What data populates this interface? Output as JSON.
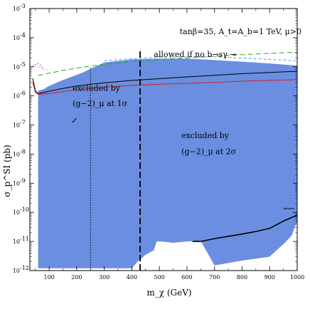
{
  "chart_data": {
    "type": "area",
    "title": "tanβ=35, A_t=A_b=1 TeV, μ>0",
    "xlabel": "m_χ (GeV)",
    "ylabel": "σ_p^SI (pb)",
    "x_scale": "linear",
    "y_scale": "log",
    "xlim": [
      30,
      1000
    ],
    "ylim": [
      1e-12,
      0.001
    ],
    "grid": false,
    "x_ticks": [
      {
        "value": 100,
        "label": "100"
      },
      {
        "value": 200,
        "label": "200"
      },
      {
        "value": 300,
        "label": "300"
      },
      {
        "value": 400,
        "label": "400"
      },
      {
        "value": 500,
        "label": "500"
      },
      {
        "value": 600,
        "label": "600"
      },
      {
        "value": 700,
        "label": "700"
      },
      {
        "value": 800,
        "label": "800"
      },
      {
        "value": 900,
        "label": "900"
      },
      {
        "value": 1000,
        "label": "1000"
      }
    ],
    "y_ticks": [
      {
        "exp": -12,
        "label": "10",
        "sup": "-12"
      },
      {
        "exp": -11,
        "label": "10",
        "sup": "-11"
      },
      {
        "exp": -10,
        "label": "10",
        "sup": "-10"
      },
      {
        "exp": -9,
        "label": "10",
        "sup": "-9"
      },
      {
        "exp": -8,
        "label": "10",
        "sup": "-8"
      },
      {
        "exp": -7,
        "label": "10",
        "sup": "-7"
      },
      {
        "exp": -6,
        "label": "10",
        "sup": "-6"
      },
      {
        "exp": -5,
        "label": "10",
        "sup": "-5"
      },
      {
        "exp": -4,
        "label": "10",
        "sup": "-4"
      },
      {
        "exp": -3,
        "label": "10",
        "sup": "-3"
      }
    ],
    "regions": [
      {
        "fill": "#6b8ee0",
        "upper": [
          [
            60,
            1.5e-06
          ],
          [
            80,
            1.7e-06
          ],
          [
            100,
            2.2e-06
          ],
          [
            140,
            3.2e-06
          ],
          [
            180,
            4.5e-06
          ],
          [
            220,
            6.2e-06
          ],
          [
            260,
            9.5e-06
          ],
          [
            300,
            1.4e-05
          ],
          [
            400,
            1.8e-05
          ],
          [
            500,
            1.9e-05
          ],
          [
            600,
            1.9e-05
          ],
          [
            700,
            1.7e-05
          ],
          [
            800,
            1.5e-05
          ],
          [
            900,
            1.3e-05
          ],
          [
            1000,
            1.1e-05
          ]
        ],
        "lower": [
          [
            1000,
            5e-11
          ],
          [
            980,
            1.6e-11
          ],
          [
            960,
            1e-11
          ],
          [
            900,
            3e-12
          ],
          [
            800,
            2.2e-12
          ],
          [
            700,
            1.5e-12
          ],
          [
            650,
            1.05e-11
          ],
          [
            600,
            1e-11
          ],
          [
            550,
            9e-12
          ],
          [
            510,
            1e-11
          ],
          [
            490,
            1e-11
          ],
          [
            480,
            5e-12
          ],
          [
            450,
            3.5e-12
          ],
          [
            420,
            2e-12
          ],
          [
            400,
            1.2e-12
          ],
          [
            60,
            1.2e-12
          ]
        ]
      }
    ],
    "series": [
      {
        "color": "#000000",
        "dash": "",
        "points": [
          [
            40,
            4e-06
          ],
          [
            45,
            2.5e-06
          ],
          [
            50,
            1.5e-06
          ],
          [
            60,
            1.2e-06
          ],
          [
            80,
            1.3e-06
          ],
          [
            100,
            1.45e-06
          ],
          [
            150,
            1.8e-06
          ],
          [
            200,
            2.2e-06
          ],
          [
            250,
            2.5e-06
          ],
          [
            300,
            2.8e-06
          ],
          [
            400,
            3.4e-06
          ],
          [
            500,
            3.9e-06
          ],
          [
            600,
            4.5e-06
          ],
          [
            700,
            5.1e-06
          ],
          [
            800,
            5.8e-06
          ],
          [
            900,
            6.4e-06
          ],
          [
            1000,
            7e-06
          ]
        ]
      },
      {
        "color": "#cc2222",
        "dash": "",
        "points": [
          [
            40,
            3e-06
          ],
          [
            50,
            1.3e-06
          ],
          [
            60,
            1.15e-06
          ],
          [
            80,
            1.15e-06
          ],
          [
            100,
            1.2e-06
          ],
          [
            150,
            1.4e-06
          ],
          [
            200,
            1.65e-06
          ],
          [
            300,
            2e-06
          ],
          [
            400,
            2.3e-06
          ],
          [
            500,
            2.5e-06
          ],
          [
            600,
            2.7e-06
          ],
          [
            700,
            2.9e-06
          ],
          [
            800,
            3.2e-06
          ],
          [
            900,
            3.4e-06
          ],
          [
            1000,
            3.6e-06
          ]
        ]
      },
      {
        "color": "#22aa22",
        "dash": "7 4",
        "points": [
          [
            60,
            5e-06
          ],
          [
            100,
            6e-06
          ],
          [
            150,
            7.5e-06
          ],
          [
            200,
            9e-06
          ],
          [
            250,
            1.05e-05
          ],
          [
            300,
            1.2e-05
          ],
          [
            400,
            1.5e-05
          ],
          [
            500,
            1.8e-05
          ],
          [
            600,
            2e-05
          ],
          [
            700,
            2.3e-05
          ],
          [
            800,
            2.6e-05
          ],
          [
            900,
            2.9e-05
          ],
          [
            1000,
            3.2e-05
          ]
        ]
      },
      {
        "color": "#5599ee",
        "dash": "4 3",
        "points": [
          [
            300,
            1.6e-05
          ],
          [
            400,
            1.9e-05
          ],
          [
            500,
            2.1e-05
          ],
          [
            600,
            2.2e-05
          ],
          [
            700,
            2.2e-05
          ],
          [
            800,
            2e-05
          ],
          [
            900,
            1.8e-05
          ],
          [
            1000,
            1.6e-05
          ]
        ]
      },
      {
        "color": "#bb44bb",
        "dash": "2 2",
        "points": [
          [
            40,
            1e-05
          ],
          [
            50,
            1.2e-05
          ],
          [
            60,
            1.3e-05
          ],
          [
            70,
            1.1e-05
          ],
          [
            80,
            8e-06
          ]
        ]
      },
      {
        "color": "#22bbbb",
        "dash": "1 2",
        "points": [
          [
            50,
            1.1e-05
          ],
          [
            60,
            1e-05
          ],
          [
            70,
            9e-06
          ],
          [
            80,
            8.5e-06
          ],
          [
            90,
            8e-06
          ],
          [
            100,
            7e-06
          ]
        ]
      },
      {
        "color": "#000000",
        "dash": "",
        "width": 1.6,
        "points": [
          [
            620,
            1e-11
          ],
          [
            650,
            1e-11
          ],
          [
            700,
            1.25e-11
          ],
          [
            750,
            1.5e-11
          ],
          [
            800,
            1.8e-11
          ],
          [
            850,
            2.2e-11
          ],
          [
            900,
            2.8e-11
          ],
          [
            950,
            5e-11
          ],
          [
            1000,
            8e-11
          ]
        ]
      }
    ],
    "vlines": [
      {
        "x": 250,
        "dash": "1.5 2",
        "width": 1,
        "y_from": 1e-12,
        "y_to": 1e-05
      },
      {
        "x": 430,
        "dash": "9 4",
        "width": 1.8,
        "y_from": 1e-12,
        "y_to": 4e-05
      }
    ],
    "annotations": [
      {
        "text": "allowed if no b→sγ →",
        "x": 480,
        "y": 2.2e-05
      },
      {
        "text": "excluded by",
        "x": 185,
        "y": 1.5e-06
      },
      {
        "text": "(g−2)_μ at 1σ",
        "x": 185,
        "y": 4.5e-07
      },
      {
        "text": "↙",
        "x": 180,
        "y": 1.2e-07
      },
      {
        "text": "excluded by",
        "x": 580,
        "y": 3.5e-08
      },
      {
        "text": "(g−2)_μ at 2σ",
        "x": 580,
        "y": 1e-08
      },
      {
        "text": "⟵",
        "x": 950,
        "y": 1.1e-10
      }
    ]
  }
}
